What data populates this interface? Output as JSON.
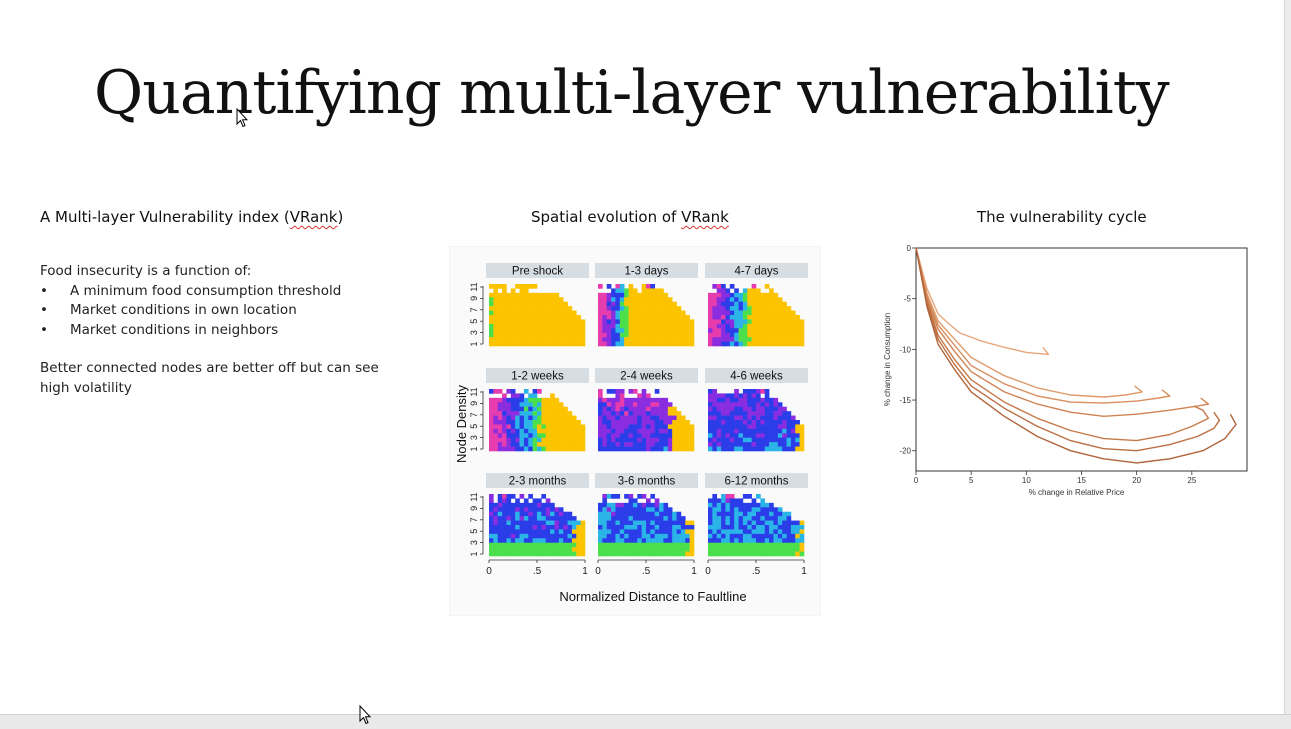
{
  "slide": {
    "title": "Quantifying multi-layer vulnerability",
    "left": {
      "heading_pre": "A Multi-layer Vulnerability index (",
      "heading_term": "VRank",
      "heading_post": ")",
      "intro": "Food insecurity is a function of:",
      "bullets": [
        "A minimum food consumption threshold",
        "Market conditions in own location",
        "Market conditions in neighbors"
      ],
      "closing": "Better connected nodes are better off but can see high volatility"
    },
    "middle": {
      "heading_pre": "Spatial evolution of ",
      "heading_term": "VRank",
      "figure": {
        "panels": [
          "Pre shock",
          "1-3 days",
          "4-7 days",
          "1-2 weeks",
          "2-4 weeks",
          "4-6 weeks",
          "2-3 months",
          "3-6 months",
          "6-12 months"
        ],
        "ylabel": "Node Density",
        "xlabel": "Normalized Distance to Faultline",
        "yticks": [
          "1",
          "3",
          "5",
          "7",
          "9",
          "11"
        ],
        "xticks": [
          "0",
          ".5",
          "1"
        ]
      }
    },
    "right": {
      "heading": "The vulnerability cycle"
    }
  },
  "chart_data": [
    {
      "type": "heatmap",
      "title": "Spatial evolution of VRank",
      "xlabel": "Normalized Distance to Faultline",
      "ylabel": "Node Density",
      "xlim": [
        0,
        1
      ],
      "ylim": [
        1,
        11
      ],
      "panels": [
        "Pre shock",
        "1-3 days",
        "4-7 days",
        "1-2 weeks",
        "2-4 weeks",
        "4-6 weeks",
        "2-3 months",
        "3-6 months",
        "6-12 months"
      ],
      "colors": [
        "#fcc400",
        "#4be04b",
        "#2ab4e8",
        "#2a3de8",
        "#8a2ce0",
        "#e63cae"
      ]
    },
    {
      "type": "line",
      "title": "The vulnerability cycle",
      "xlabel": "% change in Relative Price",
      "ylabel": "% change in Consumption",
      "xlim": [
        0,
        30
      ],
      "ylim": [
        -22,
        0
      ],
      "xticks": [
        0,
        5,
        10,
        15,
        20,
        25
      ],
      "yticks": [
        0,
        -5,
        -10,
        -15,
        -20
      ],
      "series": [
        {
          "x": [
            0,
            1,
            2,
            3,
            4,
            6,
            8,
            10,
            12,
            11.5
          ],
          "y": [
            0,
            -4,
            -6.5,
            -7.5,
            -8.4,
            -9.2,
            -9.8,
            -10.3,
            -10.5,
            -9.8
          ]
        },
        {
          "x": [
            0,
            1,
            2,
            3.5,
            5,
            8,
            11,
            14,
            17,
            19,
            20.5,
            19.8
          ],
          "y": [
            0,
            -4.5,
            -7.2,
            -9,
            -10.8,
            -12.6,
            -13.8,
            -14.5,
            -14.7,
            -14.5,
            -14.2,
            -13.6
          ]
        },
        {
          "x": [
            0,
            1,
            2,
            3.5,
            5,
            8,
            11,
            14,
            17,
            20,
            22,
            23,
            22.3
          ],
          "y": [
            0,
            -4.8,
            -7.6,
            -9.6,
            -11.6,
            -13.4,
            -14.6,
            -15.2,
            -15.3,
            -15.1,
            -14.8,
            -14.6,
            -14
          ]
        },
        {
          "x": [
            0,
            1,
            2,
            3.5,
            5,
            8,
            11,
            14,
            17,
            20,
            23,
            25.5,
            26.5,
            25.8
          ],
          "y": [
            0,
            -5,
            -8,
            -10.2,
            -12.2,
            -14.2,
            -15.4,
            -16.2,
            -16.6,
            -16.4,
            -16,
            -15.6,
            -15.4,
            -14.8
          ]
        },
        {
          "x": [
            0,
            1,
            2,
            3.5,
            5,
            8,
            11,
            14,
            17,
            20,
            23,
            25,
            26.5,
            26,
            25.2
          ],
          "y": [
            0,
            -5.2,
            -8.6,
            -11,
            -13,
            -15.2,
            -16.8,
            -18,
            -18.8,
            -19,
            -18.4,
            -17.6,
            -16.8,
            -16,
            -15.6
          ]
        },
        {
          "x": [
            0,
            1,
            2,
            3.5,
            5,
            8,
            11,
            14,
            17,
            20,
            23,
            25.5,
            27,
            27.5,
            27
          ],
          "y": [
            0,
            -5.5,
            -9,
            -11.5,
            -13.6,
            -15.8,
            -17.6,
            -19,
            -19.8,
            -20,
            -19.4,
            -18.6,
            -17.8,
            -17,
            -16.2
          ]
        },
        {
          "x": [
            0,
            1,
            2,
            3.5,
            5,
            8,
            11,
            14,
            17,
            20,
            23,
            26,
            28,
            29,
            28.5
          ],
          "y": [
            0,
            -5.8,
            -9.5,
            -12,
            -14.2,
            -16.6,
            -18.6,
            -20,
            -20.8,
            -21.2,
            -20.8,
            -20,
            -18.8,
            -17.4,
            -16.4
          ]
        }
      ]
    }
  ]
}
